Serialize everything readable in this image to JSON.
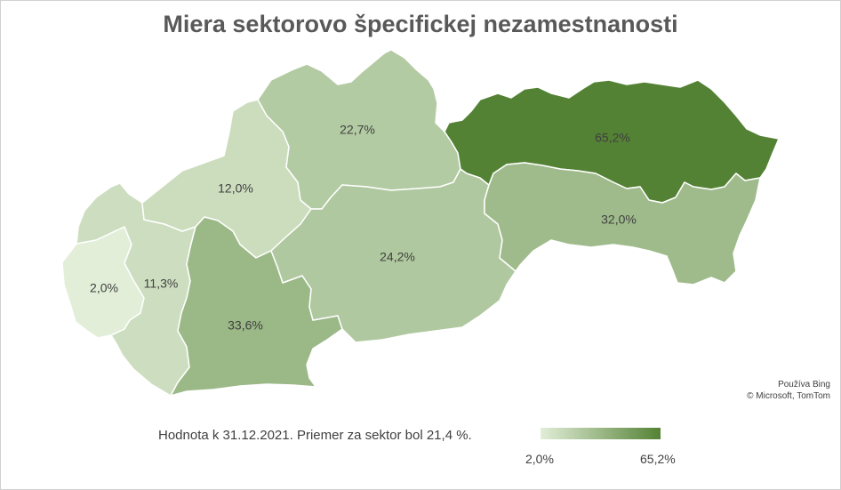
{
  "title": "Miera sektorovo špecifickej nezamestnanosti",
  "footnote": "Hodnota k 31.12.2021. Priemer za sektor bol 21,4 %.",
  "attribution": {
    "line1": "Používa Bing",
    "line2": "© Microsoft, TomTom"
  },
  "legend": {
    "min_label": "2,0%",
    "max_label": "65,2%",
    "min_value": 2.0,
    "max_value": 65.2,
    "min_color": "#e2eed8",
    "max_color": "#548235"
  },
  "regions": [
    {
      "id": "bratislava",
      "value": 2.0,
      "label": "2,0%"
    },
    {
      "id": "trnava",
      "value": 11.3,
      "label": "11,3%"
    },
    {
      "id": "trencin",
      "value": 12.0,
      "label": "12,0%"
    },
    {
      "id": "nitra",
      "value": 33.6,
      "label": "33,6%"
    },
    {
      "id": "zilina",
      "value": 22.7,
      "label": "22,7%"
    },
    {
      "id": "banska-bystrica",
      "value": 24.2,
      "label": "24,2%"
    },
    {
      "id": "presov",
      "value": 65.2,
      "label": "65,2%"
    },
    {
      "id": "kosice",
      "value": 32.0,
      "label": "32,0%"
    }
  ]
}
